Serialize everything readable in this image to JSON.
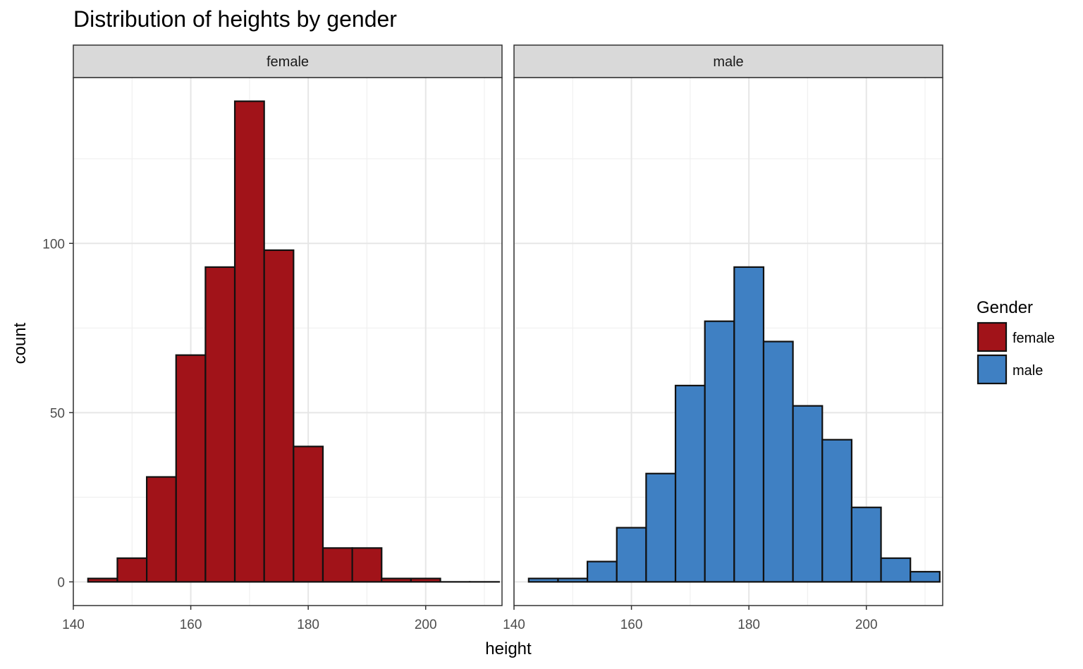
{
  "colors": {
    "female": "#a11319",
    "male": "#3f80c3"
  },
  "chart_data": {
    "type": "bar",
    "title": "Distribution of heights by gender",
    "xlabel": "height",
    "ylabel": "count",
    "xlim": [
      140,
      213
    ],
    "ylim": [
      -7,
      149
    ],
    "x_ticks": [
      140,
      160,
      180,
      200
    ],
    "y_ticks": [
      0,
      50,
      100
    ],
    "grid": true,
    "bin_width": 5,
    "legend": {
      "title": "Gender",
      "position": "right",
      "items": [
        {
          "label": "female",
          "color": "#a11319"
        },
        {
          "label": "male",
          "color": "#3f80c3"
        }
      ]
    },
    "panels": [
      {
        "name": "female",
        "color": "#a11319",
        "bin_starts": [
          142.5,
          147.5,
          152.5,
          157.5,
          162.5,
          167.5,
          172.5,
          177.5,
          182.5,
          187.5,
          192.5,
          197.5,
          202.5,
          207.5
        ],
        "values": [
          1,
          7,
          31,
          67,
          93,
          142,
          98,
          40,
          10,
          10,
          1,
          1,
          0,
          0
        ]
      },
      {
        "name": "male",
        "color": "#3f80c3",
        "bin_starts": [
          142.5,
          147.5,
          152.5,
          157.5,
          162.5,
          167.5,
          172.5,
          177.5,
          182.5,
          187.5,
          192.5,
          197.5,
          202.5,
          207.5
        ],
        "values": [
          1,
          1,
          6,
          16,
          32,
          58,
          77,
          93,
          71,
          52,
          42,
          22,
          7,
          3
        ]
      }
    ]
  }
}
